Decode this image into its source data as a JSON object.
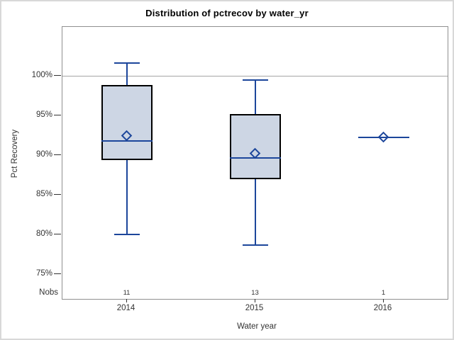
{
  "chart_data": {
    "type": "boxplot",
    "title": "Distribution of pctrecov by water_yr",
    "xlabel": "Water year",
    "ylabel": "Pct Recovery",
    "categories": [
      "2014",
      "2015",
      "2016"
    ],
    "nobs_label": "Nobs",
    "nobs": [
      "11",
      "13",
      "1"
    ],
    "y_ticks": [
      {
        "value": 100,
        "label": "100%"
      },
      {
        "value": 95,
        "label": "95%"
      },
      {
        "value": 90,
        "label": "90%"
      },
      {
        "value": 85,
        "label": "85%"
      },
      {
        "value": 80,
        "label": "80%"
      },
      {
        "value": 75,
        "label": "75%"
      }
    ],
    "ylim": [
      71.9,
      106.2
    ],
    "reference_line_value": 100,
    "legend": "none",
    "grid": "off",
    "boxes": [
      {
        "category": "2014",
        "n": 11,
        "whisker_low": 80.0,
        "q1": 89.4,
        "median": 91.8,
        "mean": 92.5,
        "q3": 98.9,
        "whisker_high": 101.6
      },
      {
        "category": "2015",
        "n": 13,
        "whisker_low": 78.7,
        "q1": 87.0,
        "median": 89.7,
        "mean": 90.3,
        "q3": 95.2,
        "whisker_high": 99.5
      },
      {
        "category": "2016",
        "n": 1,
        "whisker_low": 92.3,
        "q1": 92.3,
        "median": 92.3,
        "mean": 92.3,
        "q3": 92.3,
        "whisker_high": 92.3
      }
    ],
    "colors": {
      "box_fill": "#cdd6e4",
      "box_border": "#000000",
      "line": "#1c469b",
      "reference_line": "#a6a6a6",
      "plot_border": "#8f8f8f",
      "figure_border": "#d8d8d8"
    }
  }
}
